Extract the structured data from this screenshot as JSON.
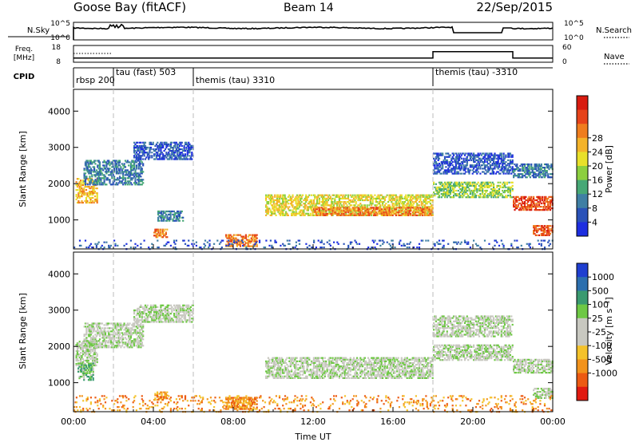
{
  "header": {
    "title": "Goose Bay (fitACF)",
    "beam": "Beam 14",
    "date": "22/Sep/2015"
  },
  "strip_nsky": {
    "left_label": "N.Sky",
    "right_label": "N.Search",
    "left_ticks": [
      "10^5",
      "10^0"
    ],
    "right_ticks": [
      "10^5",
      "10^0"
    ]
  },
  "strip_freq": {
    "left_label": "Freq.",
    "left_unit": "[MHz]",
    "right_label": "Nave",
    "left_ticks": [
      "18",
      "8"
    ],
    "right_ticks": [
      "60",
      "0"
    ],
    "nave_steps": [
      {
        "t0": 0,
        "t1": 18,
        "level": 8
      },
      {
        "t0": 18,
        "t1": 22,
        "level": 36
      },
      {
        "t0": 22,
        "t1": 24,
        "level": 8
      }
    ]
  },
  "cpid": {
    "label": "CPID",
    "segments": [
      {
        "start": 0,
        "text": "rbsp 200"
      },
      {
        "start": 2,
        "text": "tau (fast) 503"
      },
      {
        "start": 6,
        "text": "themis (tau) 3310"
      },
      {
        "start": 18,
        "text": "themis (tau) -3310"
      }
    ]
  },
  "chart_data": [
    {
      "type": "heatmap",
      "name": "power-panel",
      "ylabel": "Slant Range [km]",
      "yticks": [
        1000,
        2000,
        3000,
        4000
      ],
      "ylim": [
        200,
        4600
      ],
      "xlim": [
        0,
        24
      ],
      "colorbar_label": "Power [dB]",
      "colorbar_ticks": [
        4,
        8,
        12,
        16,
        20,
        24,
        28
      ],
      "colorbar_colors": [
        "#1d2ee0",
        "#2a52b8",
        "#3f7fa4",
        "#47a876",
        "#8ccf3f",
        "#e8e02a",
        "#f4b32a",
        "#ef7d1e",
        "#e6431a",
        "#d81b10"
      ],
      "regions": [
        {
          "t": [
            0.1,
            1.2
          ],
          "r": [
            1500,
            2200
          ],
          "c": 6
        },
        {
          "t": [
            0.5,
            3.5
          ],
          "r": [
            2000,
            2700
          ],
          "c": 2
        },
        {
          "t": [
            3.0,
            6.0
          ],
          "r": [
            2700,
            3200
          ],
          "c": 1
        },
        {
          "t": [
            4.2,
            5.5
          ],
          "r": [
            1000,
            1300
          ],
          "c": 2
        },
        {
          "t": [
            7.6,
            9.2
          ],
          "r": [
            300,
            650
          ],
          "c": 7
        },
        {
          "t": [
            4.0,
            4.7
          ],
          "r": [
            550,
            800
          ],
          "c": 7
        },
        {
          "t": [
            9.6,
            18.0
          ],
          "r": [
            1150,
            1750
          ],
          "c": 5
        },
        {
          "t": [
            12.0,
            18.0
          ],
          "r": [
            1150,
            1400
          ],
          "c": 7
        },
        {
          "t": [
            18.0,
            22.0
          ],
          "r": [
            1650,
            2100
          ],
          "c": 4
        },
        {
          "t": [
            18.0,
            22.0
          ],
          "r": [
            2300,
            2900
          ],
          "c": 1
        },
        {
          "t": [
            22.0,
            24.0
          ],
          "r": [
            1300,
            1700
          ],
          "c": 8
        },
        {
          "t": [
            23.0,
            24.0
          ],
          "r": [
            600,
            900
          ],
          "c": 8
        },
        {
          "t": [
            22.0,
            24.0
          ],
          "r": [
            2200,
            2600
          ],
          "c": 2
        },
        {
          "t": [
            0.0,
            24.0
          ],
          "r": [
            220,
            500
          ],
          "c": 1
        }
      ]
    },
    {
      "type": "heatmap",
      "name": "velocity-panel",
      "xlabel": "Time UT",
      "ylabel": "Slant Range [km]",
      "yticks": [
        1000,
        2000,
        3000,
        4000
      ],
      "ylim": [
        200,
        4600
      ],
      "xlim": [
        0,
        24
      ],
      "xticks": [
        "00:00",
        "04:00",
        "08:00",
        "12:00",
        "16:00",
        "20:00",
        "00:00"
      ],
      "colorbar_label": "Velocity [m s⁻¹]",
      "colorbar_ticks": [
        1000,
        500,
        100,
        25,
        -25,
        -100,
        -500,
        -1000
      ],
      "colorbar_colors": [
        "#1f3fd0",
        "#2c6fae",
        "#3a9a70",
        "#6ec844",
        "#c8c8c0",
        "#c8c8c0",
        "#f4c22a",
        "#f2931c",
        "#ec5a12",
        "#e11a10"
      ],
      "regions": [
        {
          "t": [
            0.1,
            1.2
          ],
          "r": [
            1500,
            2200
          ],
          "c": 4
        },
        {
          "t": [
            0.5,
            3.5
          ],
          "r": [
            2000,
            2700
          ],
          "c": 4
        },
        {
          "t": [
            3.0,
            6.0
          ],
          "r": [
            2700,
            3200
          ],
          "c": 4
        },
        {
          "t": [
            0.2,
            1.0
          ],
          "r": [
            1100,
            1600
          ],
          "c": 3
        },
        {
          "t": [
            7.6,
            9.2
          ],
          "r": [
            300,
            650
          ],
          "c": 7
        },
        {
          "t": [
            4.0,
            4.7
          ],
          "r": [
            550,
            800
          ],
          "c": 7
        },
        {
          "t": [
            9.6,
            18.0
          ],
          "r": [
            1150,
            1750
          ],
          "c": 4
        },
        {
          "t": [
            18.0,
            22.0
          ],
          "r": [
            1650,
            2100
          ],
          "c": 4
        },
        {
          "t": [
            18.0,
            22.0
          ],
          "r": [
            2300,
            2900
          ],
          "c": 4
        },
        {
          "t": [
            22.0,
            24.0
          ],
          "r": [
            1300,
            1700
          ],
          "c": 4
        },
        {
          "t": [
            23.0,
            24.0
          ],
          "r": [
            600,
            900
          ],
          "c": 4
        },
        {
          "t": [
            0.0,
            24.0
          ],
          "r": [
            220,
            700
          ],
          "c": 7
        }
      ]
    }
  ]
}
